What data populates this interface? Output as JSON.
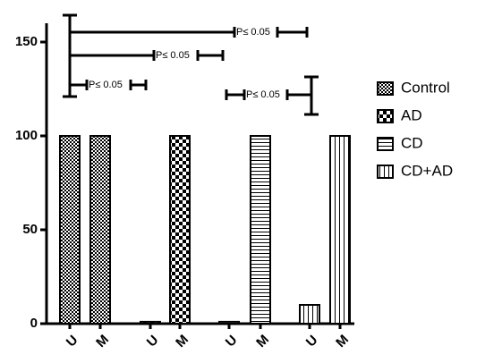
{
  "chart_data": {
    "type": "bar",
    "categories": [
      "U",
      "M",
      "U",
      "M",
      "U",
      "M",
      "U",
      "M"
    ],
    "series": [
      {
        "name": "Control",
        "color": "#000000",
        "pattern": "fine-check",
        "values": [
          100,
          100,
          null,
          null,
          null,
          null,
          null,
          null
        ]
      },
      {
        "name": "AD",
        "color": "#000000",
        "pattern": "coarse-check",
        "values": [
          null,
          null,
          1,
          100,
          null,
          null,
          null,
          null
        ]
      },
      {
        "name": "CD",
        "color": "#000000",
        "pattern": "horizontal-lines",
        "values": [
          null,
          null,
          null,
          null,
          1,
          100,
          null,
          null
        ]
      },
      {
        "name": "CD+AD",
        "color": "#000000",
        "pattern": "vertical-lines",
        "values": [
          null,
          null,
          null,
          null,
          null,
          null,
          10,
          100
        ]
      }
    ],
    "ylim": [
      0,
      160
    ],
    "yticks": [
      0,
      50,
      100,
      150
    ],
    "legend": "right",
    "annotations": [
      {
        "text": "P≤ 0.05"
      },
      {
        "text": "P≤ 0.05"
      },
      {
        "text": "P≤ 0.05"
      },
      {
        "text": "P≤ 0.05"
      }
    ]
  }
}
